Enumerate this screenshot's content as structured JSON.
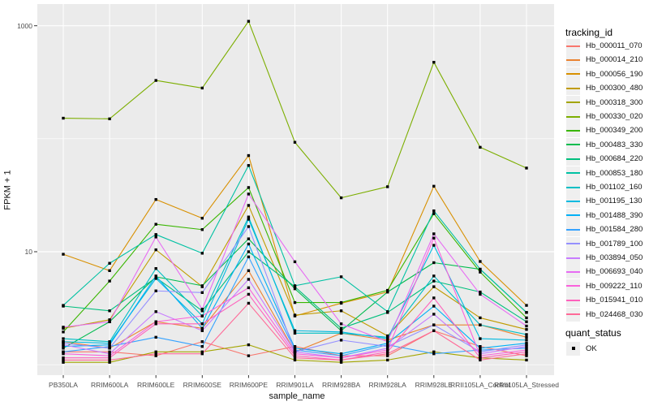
{
  "chart_data": {
    "type": "line",
    "title": "",
    "xlabel": "sample_name",
    "ylabel": "FPKM + 1",
    "y_scale": "log10",
    "y_axis_labeled_breaks": [
      1000,
      10
    ],
    "y_axis_minor_gridlines": [
      100,
      1
    ],
    "ylim": [
      0.9,
      1350
    ],
    "grid": true,
    "legend_position": "right",
    "panel_bg": "#ebebeb",
    "gridline_color": "#ffffff",
    "axis_text_color": "#4d4d4d",
    "point_color": "#000000",
    "categories": [
      "PB350LA",
      "RRIM600LA",
      "RRIM600LE",
      "RRIM600SE",
      "RRIM600PE",
      "RRIM901LA",
      "RRIM928BA",
      "RRIM928LA",
      "RRIM928LE",
      "RRII105LA_Control",
      "RRII105LA_Stressed"
    ],
    "series": [
      {
        "name": "Hb_000011_070",
        "color": "#F8766D",
        "quant_status": "OK",
        "values": [
          1.3,
          1.3,
          1.2,
          1.6,
          1.2,
          1.45,
          1.2,
          1.2,
          2.0,
          1.45,
          1.2
        ]
      },
      {
        "name": "Hb_000014_210",
        "color": "#EA8331",
        "quant_status": "OK",
        "values": [
          1.6,
          1.4,
          2.4,
          2.1,
          6.8,
          1.3,
          1.9,
          1.65,
          2.25,
          2.25,
          1.75
        ]
      },
      {
        "name": "Hb_000056_190",
        "color": "#D89000",
        "quant_status": "OK",
        "values": [
          9.5,
          6.8,
          29,
          19.8,
          71,
          2.7,
          3.5,
          4.4,
          38,
          8.2,
          3.35
        ]
      },
      {
        "name": "Hb_000300_480",
        "color": "#C09B00",
        "quant_status": "OK",
        "values": [
          2.1,
          2.5,
          10.4,
          4.9,
          25.7,
          2.75,
          3.0,
          1.8,
          4.9,
          2.6,
          2.05
        ]
      },
      {
        "name": "Hb_000318_300",
        "color": "#A3A500",
        "quant_status": "OK",
        "values": [
          1.05,
          1.05,
          1.3,
          1.3,
          1.5,
          1.1,
          1.05,
          1.1,
          1.3,
          1.15,
          1.1
        ]
      },
      {
        "name": "Hb_000330_020",
        "color": "#7CAE00",
        "quant_status": "OK",
        "values": [
          152,
          150,
          328,
          281,
          1095,
          93,
          30,
          37.6,
          475,
          84,
          55
        ]
      },
      {
        "name": "Hb_000349_200",
        "color": "#39B600",
        "quant_status": "OK",
        "values": [
          1.95,
          5.5,
          17.5,
          15.7,
          37,
          3.55,
          3.55,
          4.55,
          21.7,
          6.6,
          2.6
        ]
      },
      {
        "name": "Hb_000483_330",
        "color": "#00BB4E",
        "quant_status": "OK",
        "values": [
          1.4,
          2.4,
          6.0,
          5.0,
          13,
          4.7,
          2.0,
          4.4,
          8.0,
          7.0,
          2.9
        ]
      },
      {
        "name": "Hb_000684_220",
        "color": "#00BF7D",
        "quant_status": "OK",
        "values": [
          3.3,
          3.0,
          5.9,
          3.0,
          10,
          4.9,
          2.1,
          2.9,
          5.5,
          4.4,
          2.4
        ]
      },
      {
        "name": "Hb_000853_180",
        "color": "#00C1A3",
        "quant_status": "OK",
        "values": [
          3.35,
          7.9,
          14.2,
          9.7,
          58,
          5.0,
          6.0,
          2.95,
          23,
          7.0,
          2.9
        ]
      },
      {
        "name": "Hb_001102_160",
        "color": "#00BFC4",
        "quant_status": "OK",
        "values": [
          1.7,
          1.6,
          7.1,
          2.7,
          20.3,
          1.9,
          1.9,
          1.75,
          6.1,
          2.25,
          1.85
        ]
      },
      {
        "name": "Hb_001195_130",
        "color": "#00BAE0",
        "quant_status": "OK",
        "values": [
          1.6,
          1.55,
          5.8,
          2.3,
          19.4,
          2.0,
          1.95,
          1.7,
          11.4,
          1.7,
          1.65
        ]
      },
      {
        "name": "Hb_001488_390",
        "color": "#00B0F6",
        "quant_status": "OK",
        "values": [
          1.45,
          1.5,
          6.1,
          2.1,
          11.7,
          1.4,
          1.25,
          1.55,
          3.3,
          1.4,
          1.55
        ]
      },
      {
        "name": "Hb_001584_280",
        "color": "#35A2FF",
        "quant_status": "OK",
        "values": [
          1.3,
          1.45,
          1.75,
          1.45,
          9.0,
          1.35,
          1.2,
          1.5,
          1.25,
          1.35,
          1.4
        ]
      },
      {
        "name": "Hb_001789_100",
        "color": "#9590FF",
        "quant_status": "OK",
        "values": [
          1.55,
          1.4,
          4.5,
          4.35,
          16.7,
          1.3,
          1.65,
          1.45,
          2.25,
          1.3,
          1.5
        ]
      },
      {
        "name": "Hb_003894_050",
        "color": "#C77CFF",
        "quant_status": "OK",
        "values": [
          1.5,
          1.25,
          2.95,
          2.0,
          5.7,
          1.3,
          1.15,
          1.4,
          2.8,
          1.25,
          1.45
        ]
      },
      {
        "name": "Hb_006693_040",
        "color": "#E76BF3",
        "quant_status": "OK",
        "values": [
          2.15,
          2.4,
          13.5,
          3.1,
          32.4,
          8.15,
          2.3,
          1.6,
          14.4,
          4.2,
          2.2
        ]
      },
      {
        "name": "Hb_009222_110",
        "color": "#FA62DB",
        "quant_status": "OK",
        "values": [
          1.25,
          1.2,
          2.4,
          2.7,
          4.8,
          1.25,
          1.15,
          1.35,
          13.2,
          1.2,
          1.35
        ]
      },
      {
        "name": "Hb_015941_010",
        "color": "#FF62BC",
        "quant_status": "OK",
        "values": [
          1.15,
          1.15,
          2.3,
          2.3,
          4.2,
          1.2,
          1.1,
          1.3,
          3.9,
          1.15,
          1.3
        ]
      },
      {
        "name": "Hb_024468_030",
        "color": "#FF6A98",
        "quant_status": "OK",
        "values": [
          1.1,
          1.1,
          1.25,
          1.25,
          3.5,
          1.15,
          1.1,
          1.25,
          2.0,
          1.1,
          1.25
        ]
      }
    ]
  },
  "legend": {
    "tracking_title": "tracking_id",
    "quant_title": "quant_status",
    "quant_value": "OK"
  }
}
